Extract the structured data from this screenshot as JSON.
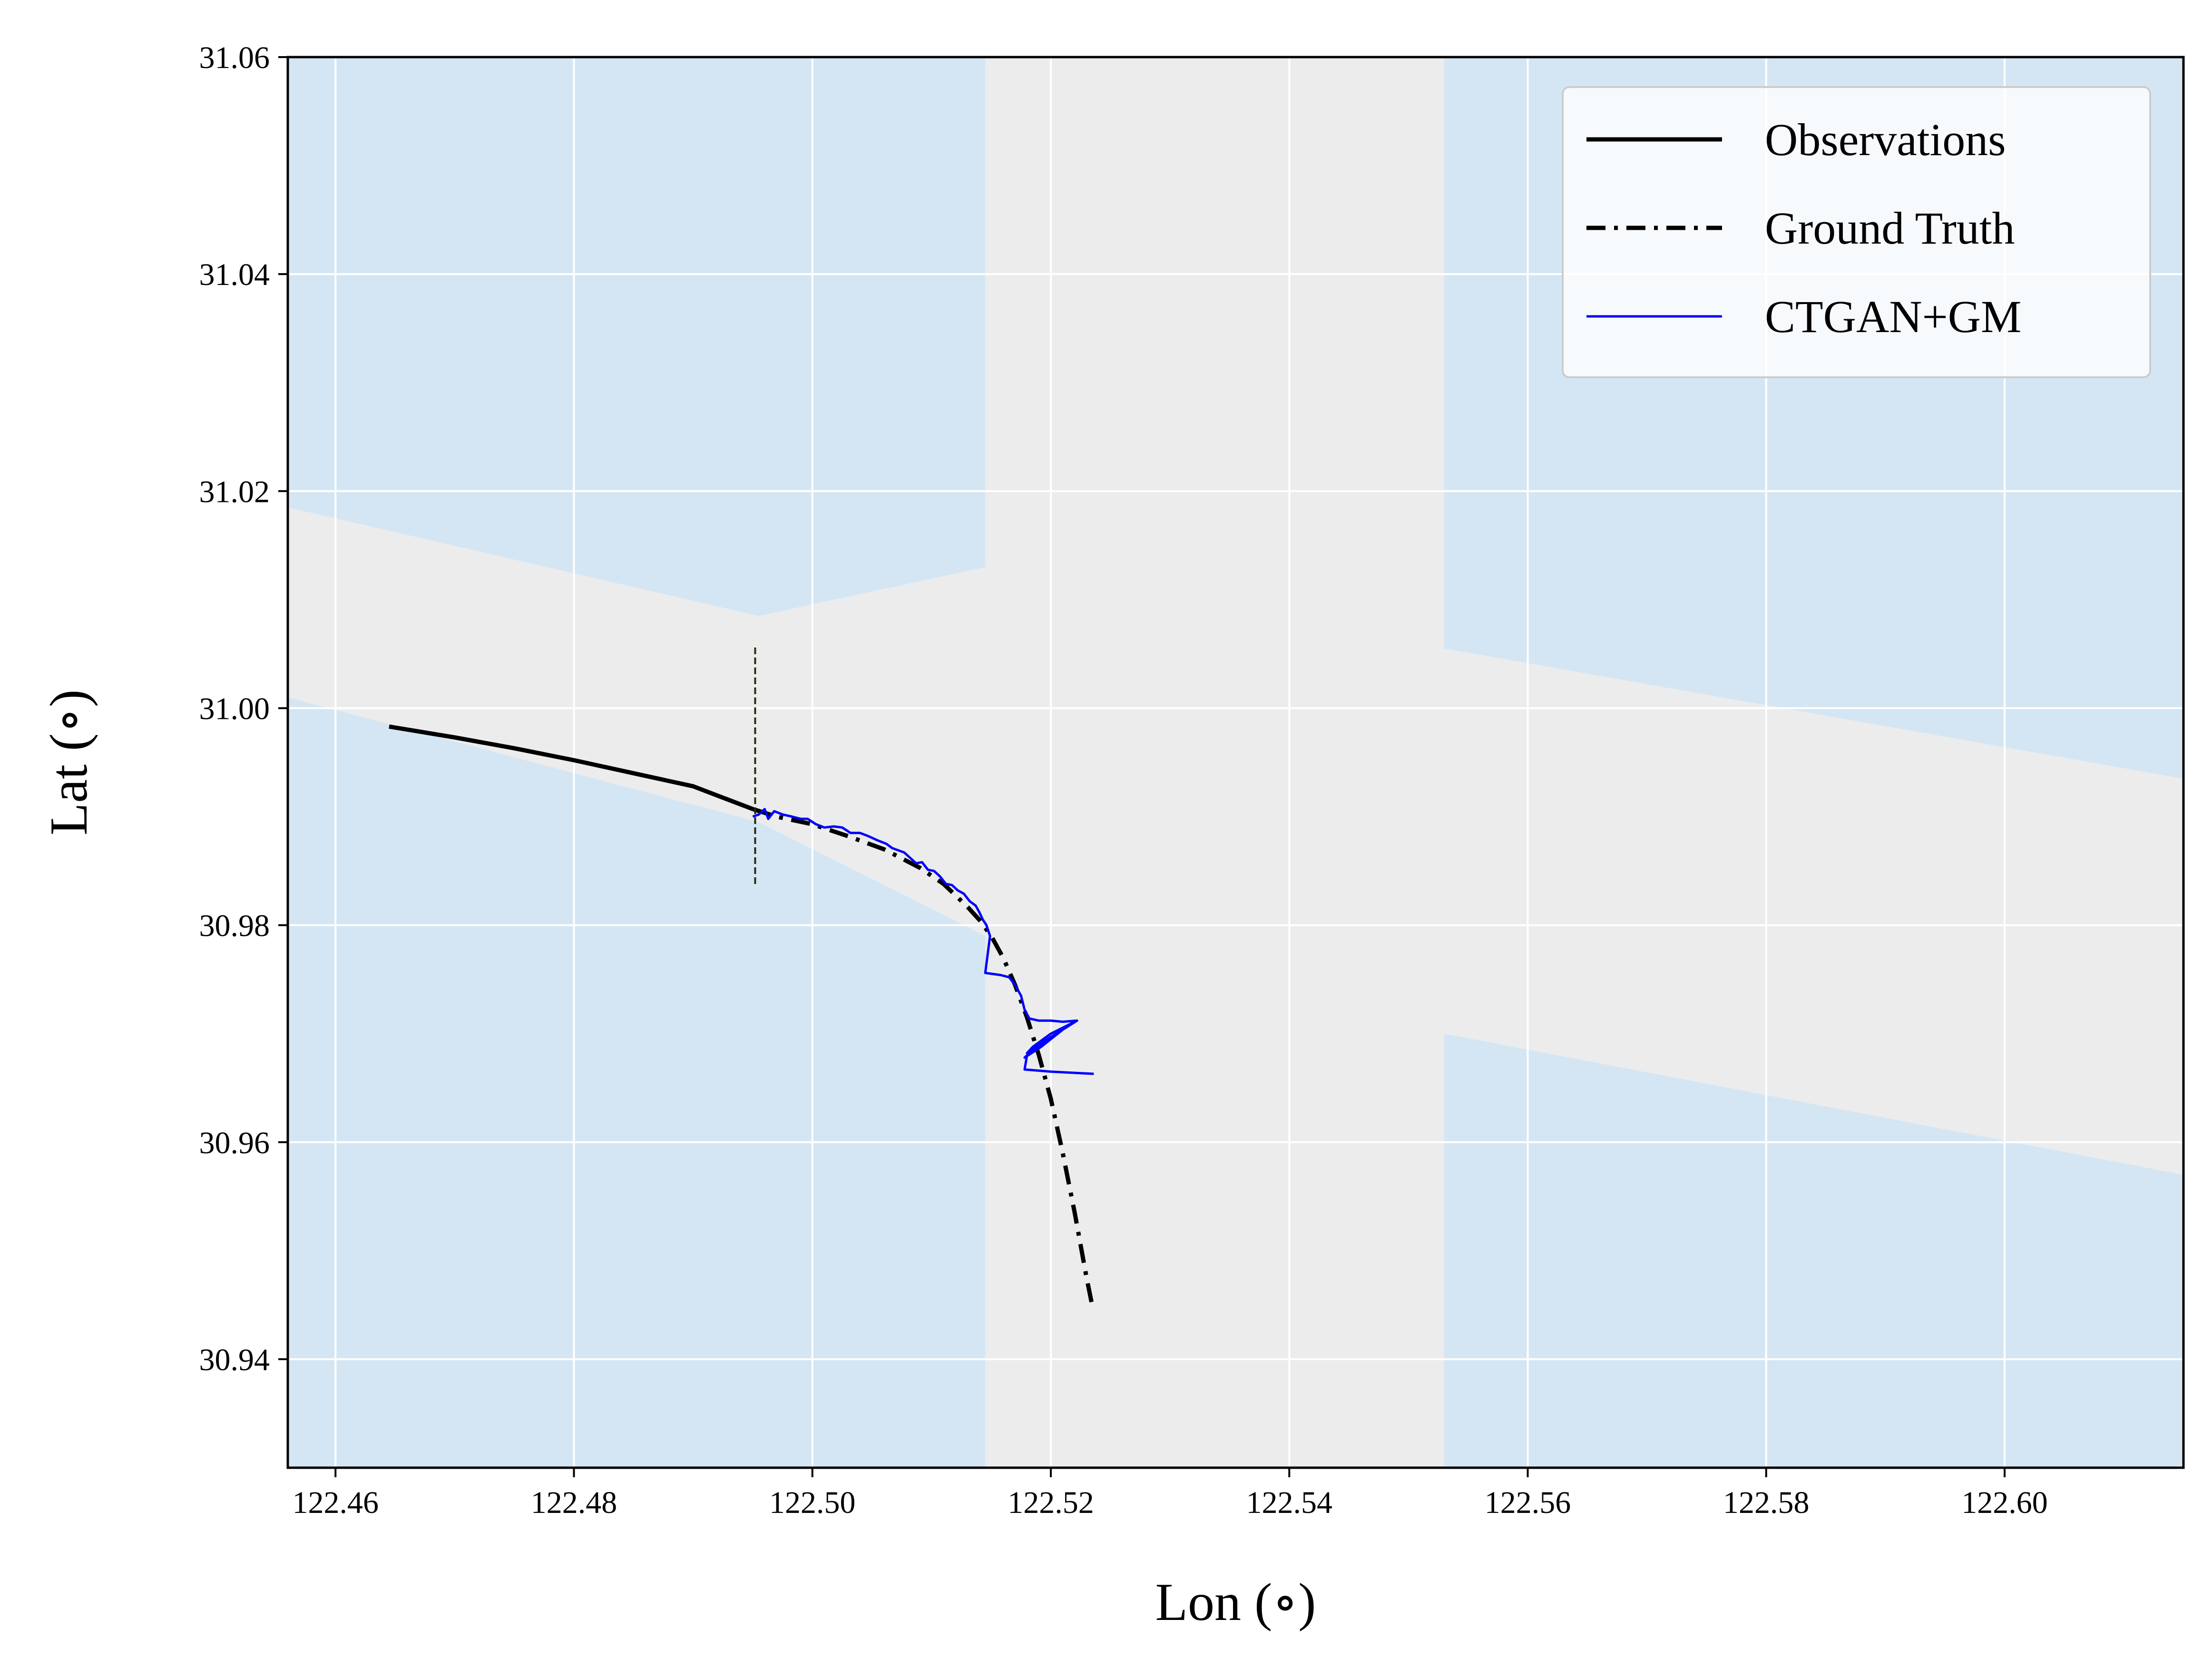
{
  "chart_data": {
    "type": "line",
    "xlabel": "Lon (∘)",
    "ylabel": "Lat (∘)",
    "xlim": [
      122.456,
      122.615
    ],
    "ylim": [
      30.93,
      31.06
    ],
    "xticks": [
      122.46,
      122.48,
      122.5,
      122.52,
      122.54,
      122.56,
      122.58,
      122.6
    ],
    "yticks": [
      30.94,
      30.96,
      30.98,
      31.0,
      31.02,
      31.04,
      31.06
    ],
    "xtick_labels": [
      "122.46",
      "122.48",
      "122.50",
      "122.52",
      "122.54",
      "122.56",
      "122.58",
      "122.60"
    ],
    "ytick_labels": [
      "30.94",
      "30.96",
      "30.98",
      "31.00",
      "31.02",
      "31.04",
      "31.06"
    ],
    "grid": true,
    "legend_position": "top-right",
    "colors": {
      "water": "#d4e6f4",
      "land": "#ececec",
      "observations": "#000000",
      "ground_truth": "#000000",
      "ctgan_gm": "#0000ff",
      "marker": "#2a2a10"
    },
    "background_regions": {
      "water": [
        [
          [
            122.456,
            31.06
          ],
          [
            122.5145,
            31.06
          ],
          [
            122.5145,
            31.013
          ],
          [
            122.4955,
            31.0085
          ],
          [
            122.456,
            31.0185
          ]
        ],
        [
          [
            122.456,
            31.001
          ],
          [
            122.456,
            30.93
          ],
          [
            122.5145,
            30.93
          ],
          [
            122.5145,
            30.979
          ],
          [
            122.4955,
            30.9895
          ]
        ],
        [
          [
            122.553,
            31.06
          ],
          [
            122.615,
            31.06
          ],
          [
            122.615,
            30.9935
          ],
          [
            122.553,
            31.0055
          ]
        ],
        [
          [
            122.553,
            30.97
          ],
          [
            122.615,
            30.957
          ],
          [
            122.615,
            30.93
          ],
          [
            122.553,
            30.93
          ]
        ]
      ]
    },
    "series": [
      {
        "name": "Observations",
        "style": "solid",
        "x": [
          122.4645,
          122.47,
          122.475,
          122.48,
          122.485,
          122.49,
          122.495
        ],
        "y": [
          30.9983,
          30.9973,
          30.9963,
          30.9952,
          30.994,
          30.9928,
          30.9907
        ]
      },
      {
        "name": "Ground Truth",
        "style": "dashdot",
        "x": [
          122.495,
          122.497,
          122.5,
          122.503,
          122.506,
          122.509,
          122.511,
          122.513,
          122.514,
          122.515,
          122.516,
          122.517,
          122.518,
          122.519,
          122.52,
          122.521,
          122.522,
          122.523,
          122.5235
        ],
        "y": [
          30.9907,
          30.99,
          30.9893,
          30.9882,
          30.987,
          30.9853,
          30.9838,
          30.9817,
          30.9805,
          30.979,
          30.977,
          30.9745,
          30.9715,
          30.968,
          30.964,
          30.959,
          30.9535,
          30.9475,
          30.9448
        ]
      },
      {
        "name": "CTGAN+GM",
        "style": "solid",
        "x": [
          122.495,
          122.4955,
          122.496,
          122.4963,
          122.4968,
          122.4975,
          122.4983,
          122.499,
          122.4996,
          122.5003,
          122.501,
          122.5018,
          122.5025,
          122.5032,
          122.504,
          122.5047,
          122.5055,
          122.5062,
          122.5067,
          122.5072,
          122.5077,
          122.5082,
          122.5087,
          122.5092,
          122.5097,
          122.5102,
          122.5107,
          122.5112,
          122.5117,
          122.5122,
          122.5127,
          122.5132,
          122.5137,
          122.514,
          122.5143,
          122.5146,
          122.5149,
          122.5145,
          122.5158,
          122.5165,
          122.517,
          122.5175,
          122.5178,
          122.5182,
          122.519,
          122.52,
          122.521,
          122.5222,
          122.52,
          122.5185,
          122.518,
          122.52,
          122.5222,
          122.519,
          122.5178,
          122.5192,
          122.5215,
          122.518,
          122.5178,
          122.52,
          122.5236
        ],
        "y": [
          30.99,
          30.9902,
          30.9907,
          30.9898,
          30.9905,
          30.9902,
          30.99,
          30.9898,
          30.9898,
          30.9893,
          30.989,
          30.9891,
          30.989,
          30.9885,
          30.9885,
          30.9882,
          30.9878,
          30.9875,
          30.9871,
          30.9869,
          30.9867,
          30.9862,
          30.9857,
          30.9858,
          30.9851,
          30.985,
          30.9845,
          30.9838,
          30.9837,
          30.9832,
          30.9829,
          30.9822,
          30.9818,
          30.9812,
          30.9805,
          30.98,
          30.979,
          30.9756,
          30.9754,
          30.9752,
          30.9745,
          30.9735,
          30.9722,
          30.9714,
          30.9712,
          30.9712,
          30.9711,
          30.9712,
          30.97,
          30.9688,
          30.9682,
          30.9697,
          30.9712,
          30.969,
          30.9678,
          30.9688,
          30.9708,
          30.968,
          30.9667,
          30.9665,
          30.9663
        ]
      }
    ],
    "marker_line": {
      "x": 122.4952,
      "y": [
        30.9838,
        31.0057
      ]
    }
  }
}
